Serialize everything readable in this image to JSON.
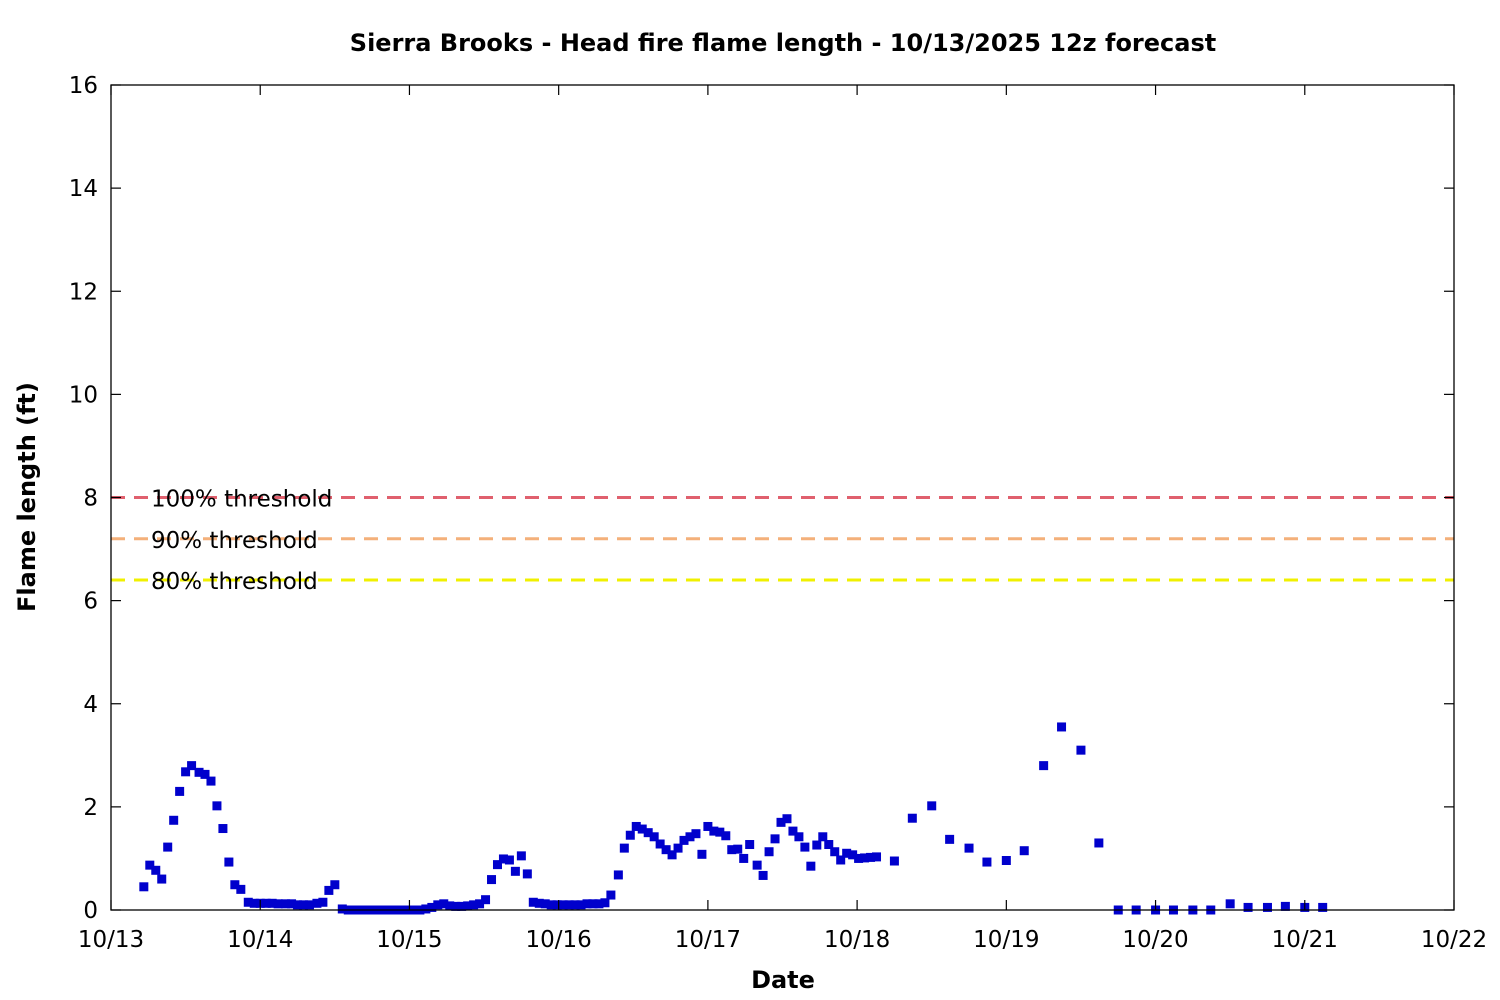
{
  "chart_data": {
    "type": "scatter",
    "title": "Sierra Brooks - Head fire flame length - 10/13/2025 12z forecast",
    "xlabel": "Date",
    "ylabel": "Flame length (ft)",
    "x_ticks": [
      "10/13",
      "10/14",
      "10/15",
      "10/16",
      "10/17",
      "10/18",
      "10/19",
      "10/20",
      "10/21",
      "10/22"
    ],
    "y_ticks": [
      0,
      2,
      4,
      6,
      8,
      10,
      12,
      14,
      16
    ],
    "ylim": [
      0,
      16
    ],
    "xlim_days": [
      0,
      9
    ],
    "grid": false,
    "marker_color": "#0000cc",
    "thresholds": [
      {
        "label": "100% threshold",
        "value": 8.0,
        "color": "#e0606e"
      },
      {
        "label": "90% threshold",
        "value": 7.2,
        "color": "#f4b07a"
      },
      {
        "label": "80% threshold",
        "value": 6.4,
        "color": "#f0f000"
      }
    ],
    "points": [
      [
        0.22,
        0.45
      ],
      [
        0.26,
        0.87
      ],
      [
        0.3,
        0.77
      ],
      [
        0.34,
        0.6
      ],
      [
        0.38,
        1.22
      ],
      [
        0.42,
        1.74
      ],
      [
        0.46,
        2.3
      ],
      [
        0.5,
        2.68
      ],
      [
        0.54,
        2.8
      ],
      [
        0.59,
        2.67
      ],
      [
        0.63,
        2.63
      ],
      [
        0.67,
        2.5
      ],
      [
        0.71,
        2.02
      ],
      [
        0.75,
        1.58
      ],
      [
        0.79,
        0.93
      ],
      [
        0.83,
        0.49
      ],
      [
        0.87,
        0.4
      ],
      [
        0.92,
        0.15
      ],
      [
        0.96,
        0.13
      ],
      [
        1.0,
        0.13
      ],
      [
        1.04,
        0.13
      ],
      [
        1.08,
        0.13
      ],
      [
        1.12,
        0.12
      ],
      [
        1.17,
        0.12
      ],
      [
        1.21,
        0.12
      ],
      [
        1.25,
        0.1
      ],
      [
        1.29,
        0.1
      ],
      [
        1.33,
        0.1
      ],
      [
        1.38,
        0.13
      ],
      [
        1.42,
        0.15
      ],
      [
        1.46,
        0.38
      ],
      [
        1.5,
        0.49
      ],
      [
        1.55,
        0.02
      ],
      [
        1.59,
        0.0
      ],
      [
        1.63,
        0.0
      ],
      [
        1.67,
        0.0
      ],
      [
        1.71,
        0.0
      ],
      [
        1.75,
        0.0
      ],
      [
        1.79,
        0.0
      ],
      [
        1.83,
        0.0
      ],
      [
        1.87,
        0.0
      ],
      [
        1.91,
        0.0
      ],
      [
        1.95,
        0.0
      ],
      [
        1.99,
        0.0
      ],
      [
        2.03,
        0.0
      ],
      [
        2.07,
        0.0
      ],
      [
        2.11,
        0.02
      ],
      [
        2.15,
        0.05
      ],
      [
        2.19,
        0.1
      ],
      [
        2.23,
        0.12
      ],
      [
        2.27,
        0.08
      ],
      [
        2.31,
        0.07
      ],
      [
        2.35,
        0.07
      ],
      [
        2.39,
        0.08
      ],
      [
        2.43,
        0.1
      ],
      [
        2.47,
        0.12
      ],
      [
        2.51,
        0.2
      ],
      [
        2.55,
        0.59
      ],
      [
        2.59,
        0.88
      ],
      [
        2.63,
        0.99
      ],
      [
        2.67,
        0.97
      ],
      [
        2.71,
        0.75
      ],
      [
        2.75,
        1.05
      ],
      [
        2.79,
        0.7
      ],
      [
        2.83,
        0.15
      ],
      [
        2.87,
        0.13
      ],
      [
        2.91,
        0.12
      ],
      [
        2.95,
        0.1
      ],
      [
        2.99,
        0.1
      ],
      [
        3.03,
        0.1
      ],
      [
        3.07,
        0.1
      ],
      [
        3.11,
        0.1
      ],
      [
        3.15,
        0.1
      ],
      [
        3.19,
        0.12
      ],
      [
        3.23,
        0.12
      ],
      [
        3.27,
        0.12
      ],
      [
        3.31,
        0.14
      ],
      [
        3.35,
        0.29
      ],
      [
        3.4,
        0.68
      ],
      [
        3.44,
        1.2
      ],
      [
        3.48,
        1.45
      ],
      [
        3.52,
        1.62
      ],
      [
        3.56,
        1.57
      ],
      [
        3.6,
        1.5
      ],
      [
        3.64,
        1.42
      ],
      [
        3.68,
        1.28
      ],
      [
        3.72,
        1.17
      ],
      [
        3.76,
        1.07
      ],
      [
        3.8,
        1.2
      ],
      [
        3.84,
        1.35
      ],
      [
        3.88,
        1.42
      ],
      [
        3.92,
        1.48
      ],
      [
        3.96,
        1.08
      ],
      [
        4.0,
        1.62
      ],
      [
        4.04,
        1.53
      ],
      [
        4.08,
        1.51
      ],
      [
        4.12,
        1.44
      ],
      [
        4.16,
        1.17
      ],
      [
        4.2,
        1.18
      ],
      [
        4.24,
        1.0
      ],
      [
        4.28,
        1.27
      ],
      [
        4.33,
        0.87
      ],
      [
        4.37,
        0.67
      ],
      [
        4.41,
        1.13
      ],
      [
        4.45,
        1.38
      ],
      [
        4.49,
        1.7
      ],
      [
        4.53,
        1.77
      ],
      [
        4.57,
        1.53
      ],
      [
        4.61,
        1.42
      ],
      [
        4.65,
        1.22
      ],
      [
        4.69,
        0.85
      ],
      [
        4.73,
        1.26
      ],
      [
        4.77,
        1.42
      ],
      [
        4.81,
        1.27
      ],
      [
        4.85,
        1.13
      ],
      [
        4.89,
        0.97
      ],
      [
        4.93,
        1.1
      ],
      [
        4.97,
        1.07
      ],
      [
        5.01,
        1.0
      ],
      [
        5.05,
        1.01
      ],
      [
        5.09,
        1.02
      ],
      [
        5.13,
        1.03
      ],
      [
        5.25,
        0.95
      ],
      [
        5.37,
        1.78
      ],
      [
        5.5,
        2.02
      ],
      [
        5.62,
        1.37
      ],
      [
        5.75,
        1.2
      ],
      [
        5.87,
        0.93
      ],
      [
        6.0,
        0.96
      ],
      [
        6.12,
        1.15
      ],
      [
        6.25,
        2.8
      ],
      [
        6.37,
        3.55
      ],
      [
        6.5,
        3.1
      ],
      [
        6.62,
        1.3
      ],
      [
        6.75,
        0.0
      ],
      [
        6.87,
        0.0
      ],
      [
        7.0,
        0.0
      ],
      [
        7.12,
        0.0
      ],
      [
        7.25,
        0.0
      ],
      [
        7.37,
        0.0
      ],
      [
        7.5,
        0.12
      ],
      [
        7.62,
        0.05
      ],
      [
        7.75,
        0.05
      ],
      [
        7.87,
        0.07
      ],
      [
        8.0,
        0.05
      ],
      [
        8.12,
        0.05
      ]
    ]
  }
}
